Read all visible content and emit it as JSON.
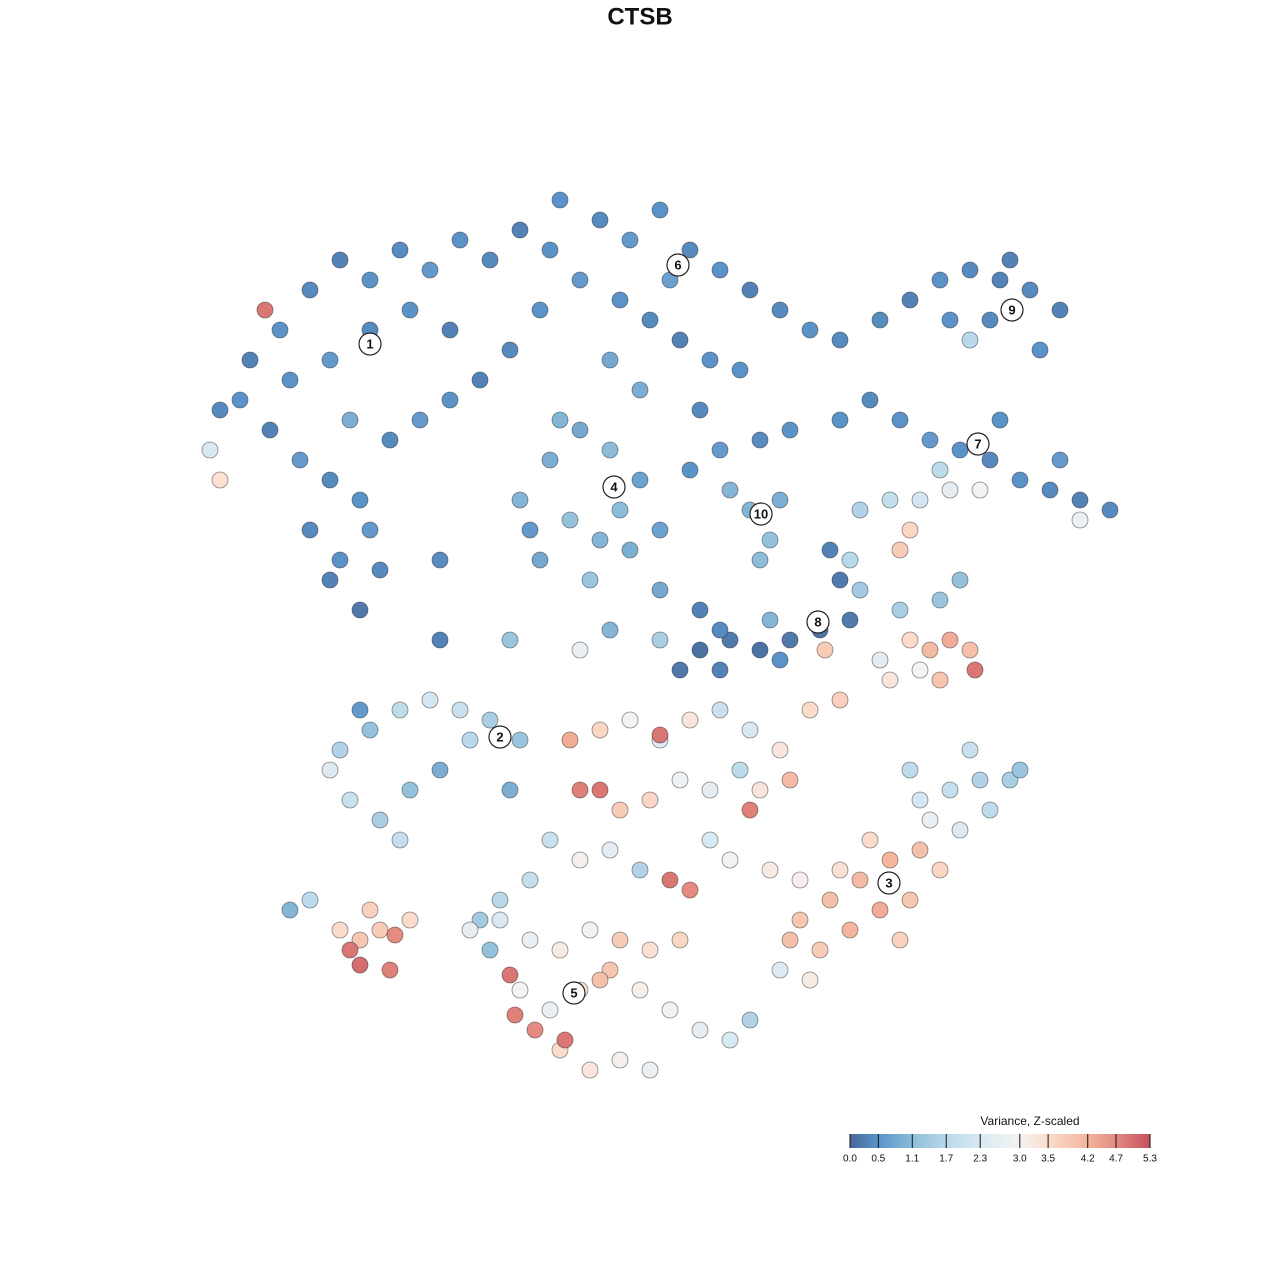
{
  "chart_data": {
    "type": "scatter",
    "title": "CTSB",
    "xlim": [
      0,
      128
    ],
    "ylim": [
      0,
      128
    ],
    "x": [
      22,
      25,
      28,
      31,
      34,
      37,
      40,
      43,
      46,
      49,
      52,
      55,
      24,
      27,
      30,
      33,
      36,
      39,
      42,
      45,
      48,
      51,
      29,
      33,
      37,
      41,
      45,
      31,
      34,
      37,
      35,
      33,
      36,
      38,
      21,
      22,
      26.5,
      44,
      56,
      60,
      63,
      66,
      69,
      72,
      75,
      78,
      81,
      84,
      58,
      62,
      65,
      68,
      71,
      61,
      64,
      70,
      74,
      54,
      67,
      52,
      55,
      58,
      61,
      64,
      57,
      60,
      63,
      54,
      59,
      62,
      66,
      56,
      53,
      75,
      77,
      78,
      76,
      73,
      88,
      91,
      94,
      97,
      100,
      103,
      106,
      95,
      99,
      104,
      101,
      97,
      84,
      87,
      90,
      93,
      96,
      99,
      102,
      105,
      108,
      111,
      76,
      79,
      72,
      69,
      100,
      106,
      94,
      108,
      86,
      89,
      92,
      95,
      98,
      91,
      90,
      85,
      86,
      90,
      94,
      96,
      70,
      73,
      76,
      79,
      82,
      85,
      68,
      72,
      78,
      84,
      83,
      77,
      82.5,
      88,
      91,
      93,
      95,
      97,
      94,
      97.5,
      89,
      92,
      44,
      51,
      61,
      66,
      70,
      66,
      72,
      58,
      34,
      37,
      40,
      43,
      46,
      49,
      52,
      35,
      38,
      41,
      44,
      47,
      36,
      40,
      51,
      33,
      29,
      31,
      34,
      36,
      38,
      35,
      36,
      39,
      41,
      37,
      39.5,
      57,
      60,
      63,
      66,
      69,
      72,
      75,
      78,
      81,
      84,
      58,
      60,
      62,
      65,
      68,
      71,
      74,
      76,
      79,
      75,
      66,
      55,
      58,
      61,
      64,
      67,
      69,
      71,
      73,
      77,
      80,
      53,
      50,
      48,
      80,
      83,
      86,
      89,
      92,
      85,
      88,
      91,
      82,
      79,
      94,
      84,
      87,
      81,
      78,
      90,
      92,
      95,
      98,
      101,
      96,
      99,
      102,
      93,
      97,
      91,
      50,
      53,
      56,
      59,
      62,
      65,
      68,
      52,
      55,
      58,
      61,
      64,
      67,
      70,
      73,
      56,
      59,
      62,
      65,
      51,
      51.5,
      53.5,
      56.5,
      60,
      75,
      49,
      47
    ],
    "y": [
      87,
      92,
      95,
      99,
      102,
      100,
      103,
      101,
      104,
      102,
      105,
      103,
      88,
      85,
      82,
      80,
      78,
      84,
      86,
      88,
      90,
      93,
      90,
      92,
      95,
      97,
      95,
      75,
      72,
      75,
      86,
      70,
      67,
      71,
      83,
      80,
      97,
      72,
      108,
      106,
      104,
      107,
      103,
      101,
      99,
      97,
      95,
      94,
      100,
      98,
      96,
      94,
      92,
      92,
      89,
      87,
      91,
      97,
      100,
      78,
      82,
      85,
      83,
      80,
      76,
      74,
      73,
      72,
      70,
      77,
      75,
      86,
      75,
      77,
      74,
      78,
      72,
      79,
      96,
      98,
      100,
      101,
      100,
      99,
      97,
      96,
      96,
      93,
      102,
      94,
      86,
      88,
      86,
      84,
      83,
      82,
      80,
      79,
      78,
      77,
      84,
      85,
      83,
      81,
      86,
      82,
      81,
      76,
      77,
      78,
      78,
      79,
      79,
      75,
      73,
      72,
      69,
      67,
      68,
      70,
      63,
      64,
      63,
      64,
      65,
      66,
      61,
      61,
      62,
      70,
      73,
      66,
      63,
      62,
      64,
      63,
      64,
      63,
      60,
      61,
      60,
      61,
      64,
      64,
      65,
      64,
      67,
      69,
      65,
      63,
      53,
      55,
      57,
      58,
      57,
      56,
      54,
      48,
      46,
      49,
      51,
      54,
      57,
      44,
      49,
      51,
      37,
      38,
      35,
      34,
      35,
      33,
      31.5,
      31,
      36,
      37,
      34.5,
      54,
      55,
      56,
      54,
      56,
      57,
      55,
      53,
      57,
      58,
      49,
      49,
      47,
      48,
      50,
      49,
      51,
      49,
      50,
      47,
      54.5,
      44,
      42,
      43,
      41,
      40,
      39,
      44,
      42,
      41,
      40,
      40,
      38,
      36,
      36,
      38,
      40,
      42,
      43,
      35,
      37,
      38,
      33,
      34,
      41,
      41,
      44,
      30,
      31,
      34,
      48,
      49,
      50,
      50,
      45,
      47,
      51,
      46,
      53,
      51,
      36,
      34,
      33,
      35,
      34,
      33,
      34,
      29,
      27,
      29,
      31,
      29,
      27,
      25,
      24,
      23,
      21,
      22,
      21,
      30.5,
      26.5,
      25,
      24,
      30,
      26,
      33,
      35
    ],
    "values": [
      0.4,
      0.3,
      0.5,
      0.4,
      0.3,
      0.5,
      0.4,
      0.6,
      0.5,
      0.4,
      0.3,
      0.5,
      0.5,
      0.3,
      0.6,
      0.4,
      0.5,
      0.4,
      0.6,
      0.5,
      0.3,
      0.4,
      0.5,
      0.6,
      0.4,
      0.5,
      0.3,
      0.4,
      0.5,
      0.6,
      0.9,
      0.3,
      0.2,
      0.4,
      2.3,
      3.4,
      4.9,
      0.4,
      0.5,
      0.4,
      0.6,
      0.5,
      0.4,
      0.5,
      0.3,
      0.4,
      0.5,
      0.4,
      0.6,
      0.5,
      0.4,
      0.3,
      0.5,
      0.8,
      0.9,
      0.4,
      0.5,
      0.5,
      0.7,
      1.0,
      0.9,
      0.8,
      1.1,
      0.7,
      1.2,
      1.0,
      0.9,
      0.8,
      1.3,
      1.1,
      0.7,
      1.0,
      0.6,
      1.0,
      1.2,
      0.9,
      1.1,
      1.0,
      0.4,
      0.3,
      0.5,
      0.4,
      0.3,
      0.4,
      0.3,
      0.5,
      0.4,
      0.5,
      0.3,
      1.7,
      0.5,
      0.4,
      0.5,
      0.6,
      0.5,
      0.4,
      0.5,
      0.4,
      0.3,
      0.4,
      0.4,
      0.5,
      0.6,
      0.5,
      0.5,
      0.6,
      1.8,
      2.8,
      1.6,
      1.9,
      2.2,
      2.6,
      2.9,
      3.6,
      3.8,
      1.7,
      1.4,
      1.5,
      1.3,
      1.2,
      0.1,
      0.2,
      0.1,
      0.2,
      0.1,
      0.2,
      0.2,
      0.3,
      0.5,
      0.2,
      0.3,
      1.0,
      3.8,
      2.5,
      3.5,
      4.1,
      4.3,
      4.0,
      3.9,
      4.9,
      3.3,
      3.0,
      0.3,
      1.3,
      1.0,
      1.5,
      0.3,
      0.8,
      0.4,
      2.7,
      1.6,
      1.2,
      1.8,
      2.2,
      2.0,
      1.5,
      1.3,
      2.0,
      1.5,
      1.2,
      0.9,
      1.7,
      0.6,
      1.9,
      0.9,
      2.4,
      1.0,
      1.8,
      3.5,
      3.9,
      3.8,
      4.9,
      5.0,
      4.8,
      3.5,
      3.7,
      4.7,
      4.3,
      3.6,
      3.0,
      2.5,
      3.3,
      2.0,
      2.3,
      3.3,
      3.5,
      3.7,
      4.8,
      4.9,
      3.8,
      3.6,
      2.8,
      2.6,
      1.8,
      3.3,
      4.1,
      4.8,
      4.9,
      2.0,
      3.1,
      2.6,
      1.6,
      4.9,
      4.7,
      2.3,
      2.9,
      3.2,
      3.1,
      1.9,
      1.7,
      1.4,
      3.9,
      4.0,
      4.1,
      4.2,
      4.0,
      4.2,
      4.3,
      3.9,
      3.8,
      4.0,
      3.6,
      3.4,
      3.5,
      3.2,
      2.4,
      3.7,
      2.2,
      1.9,
      1.6,
      1.5,
      2.4,
      1.8,
      1.3,
      2.7,
      2.0,
      1.8,
      2.3,
      2.7,
      3.2,
      2.9,
      3.8,
      3.4,
      3.6,
      3.0,
      2.7,
      3.4,
      3.9,
      3.1,
      2.9,
      2.6,
      2.3,
      3.5,
      3.3,
      3.1,
      2.8,
      4.9,
      4.8,
      4.7,
      4.9,
      4.0,
      1.6,
      1.2,
      2.6
    ],
    "annotations": [
      {
        "text": "1",
        "x": 37,
        "y": 93.6
      },
      {
        "text": "6",
        "x": 67.8,
        "y": 101.5
      },
      {
        "text": "9",
        "x": 101.2,
        "y": 97
      },
      {
        "text": "7",
        "x": 97.8,
        "y": 83.6
      },
      {
        "text": "4",
        "x": 61.4,
        "y": 79.3
      },
      {
        "text": "10",
        "x": 76.1,
        "y": 76.6
      },
      {
        "text": "8",
        "x": 81.8,
        "y": 65.8
      },
      {
        "text": "2",
        "x": 50,
        "y": 54.3
      },
      {
        "text": "3",
        "x": 88.9,
        "y": 39.7
      },
      {
        "text": "5",
        "x": 57.4,
        "y": 28.7
      }
    ],
    "colorbar": {
      "title": "Variance, Z-scaled",
      "lim": [
        0,
        5.3
      ],
      "ticks": [
        {
          "value": 0,
          "label": "0.0"
        },
        0.5,
        1.1,
        1.7,
        2.3,
        {
          "value": 3,
          "label": "3.0"
        },
        3.5,
        4.2,
        4.7,
        5.3
      ],
      "colors": [
        "#48689a",
        "#5b93c8",
        "#8cbcd9",
        "#b9d8ea",
        "#d9e9f3",
        "#f5f3f2",
        "#fbdccb",
        "#f3b59d",
        "#e48a80",
        "#c6505f"
      ]
    }
  }
}
